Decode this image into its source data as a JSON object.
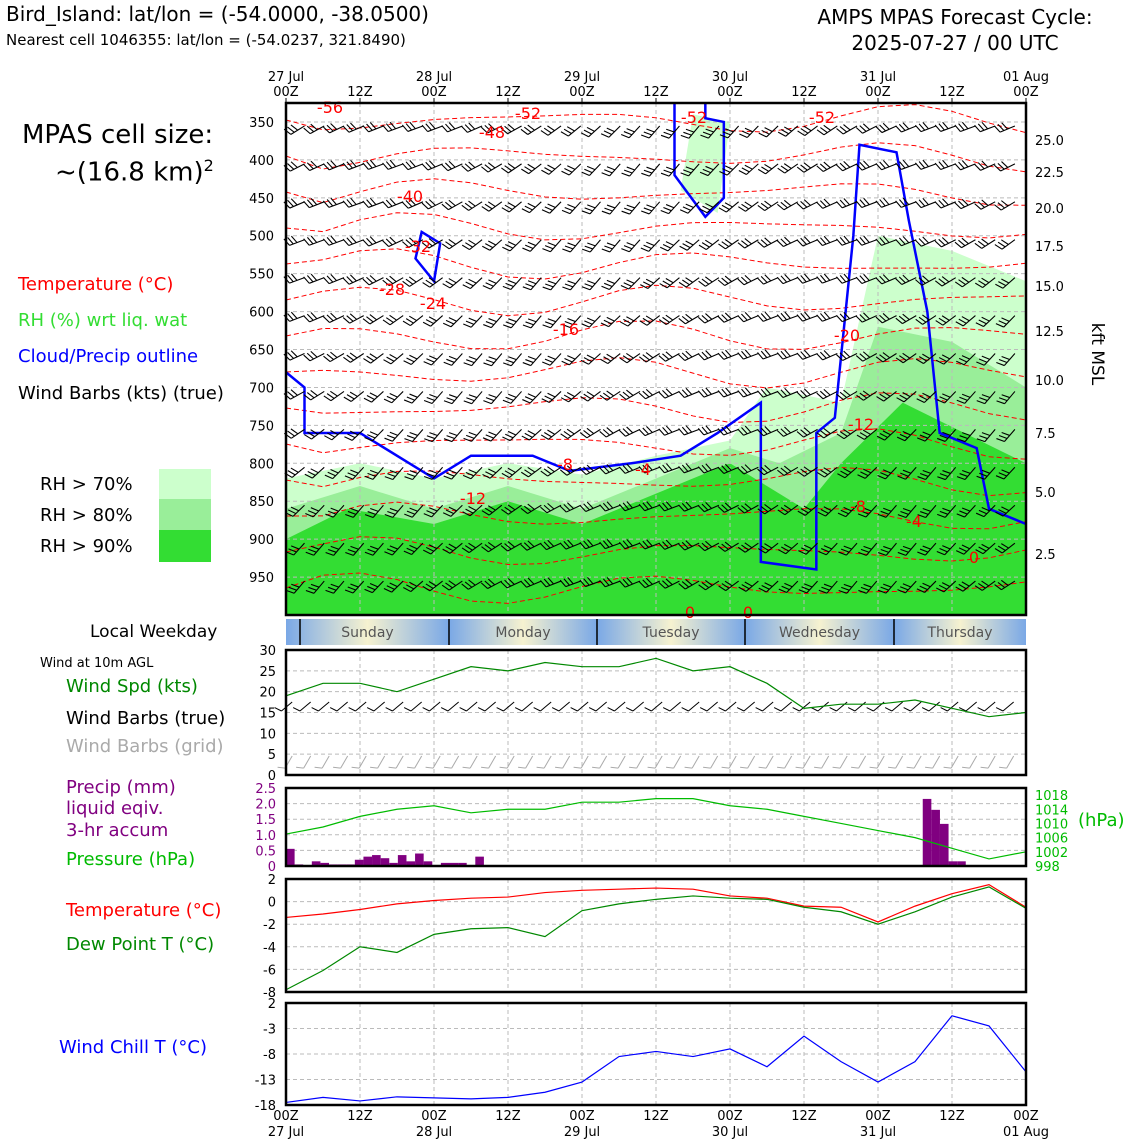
{
  "header": {
    "location": "Bird_Island: lat/lon = (-54.0000, -38.0500)",
    "cell": "Nearest cell 1046355: lat/lon = (-54.0237, 321.8490)",
    "title_line1": "AMPS MPAS Forecast Cycle:",
    "title_line2": "2025-07-27 / 00 UTC"
  },
  "left_panel": {
    "cell_size_line1": "MPAS cell size:",
    "cell_size_line2": "~(16.8 km)",
    "cell_size_sup": "2",
    "legend_temperature": "Temperature (°C)",
    "legend_rh": "RH (%) wrt liq. wat",
    "legend_cloud": "Cloud/Precip outline",
    "legend_barbs": "Wind Barbs (kts) (true)",
    "rh_70": "RH > 70%",
    "rh_80": "RH > 80%",
    "rh_90": "RH > 90%",
    "weekday_label": "Local Weekday",
    "wind10m_title": "Wind at 10m AGL",
    "wind_spd_label": "Wind Spd (kts)",
    "wind_barbs_true": "Wind Barbs (true)",
    "wind_barbs_grid": "Wind Barbs (grid)",
    "precip_label1": "Precip (mm)",
    "precip_label2": "liquid eqiv.",
    "precip_label3": "3-hr accum",
    "pressure_label": "Pressure (hPa)",
    "temp_label": "Temperature (°C)",
    "dew_label": "Dew Point T (°C)",
    "windchill_label": "Wind Chill T (°C)"
  },
  "colors": {
    "temperature": "#ff0000",
    "rh": "#33dd33",
    "cloud": "#0000ff",
    "windspd": "#008800",
    "precip": "#800080",
    "pressure": "#00bb00",
    "dewpoint": "#008800",
    "windchill": "#0000ff",
    "rh70": "#ccffcc",
    "rh80": "#99ee99",
    "rh90": "#33dd33",
    "grid_barb": "#aaaaaa"
  },
  "chart_data": [
    {
      "type": "heatmap",
      "name": "time-height cross section",
      "x_ticks_top": [
        {
          "major": "27 Jul",
          "minor": "00Z"
        },
        {
          "major": "",
          "minor": "12Z"
        },
        {
          "major": "28 Jul",
          "minor": "00Z"
        },
        {
          "major": "",
          "minor": "12Z"
        },
        {
          "major": "29 Jul",
          "minor": "00Z"
        },
        {
          "major": "",
          "minor": "12Z"
        },
        {
          "major": "30 Jul",
          "minor": "00Z"
        },
        {
          "major": "",
          "minor": "12Z"
        },
        {
          "major": "31 Jul",
          "minor": "00Z"
        },
        {
          "major": "",
          "minor": "12Z"
        },
        {
          "major": "01 Aug",
          "minor": "00Z"
        }
      ],
      "y_ticks_pressure": [
        "350",
        "400",
        "450",
        "500",
        "550",
        "600",
        "650",
        "700",
        "750",
        "800",
        "850",
        "900",
        "950"
      ],
      "y_ticks_kft": [
        "25.0",
        "22.5",
        "20.0",
        "17.5",
        "15.0",
        "12.5",
        "10.0",
        "7.5",
        "5.0",
        "2.5"
      ],
      "ylabel_right": "kft MSL",
      "temperature_labels": [
        "-56",
        "-52",
        "-52",
        "-52",
        "-48",
        "-40",
        "-32",
        "-28",
        "-24",
        "-16",
        "-20",
        "-12",
        "-12",
        "-8",
        "-4",
        "-8",
        "-4",
        "0",
        "0",
        "0"
      ]
    },
    {
      "type": "table",
      "name": "local weekday",
      "days": [
        "Sunday",
        "Monday",
        "Tuesday",
        "Wednesday",
        "Thursday"
      ]
    },
    {
      "type": "line",
      "name": "wind speed 10m",
      "ylim": [
        0,
        30
      ],
      "yticks": [
        "30",
        "25",
        "20",
        "15",
        "10",
        "5",
        "0"
      ],
      "x_hours": [
        0,
        6,
        12,
        18,
        24,
        30,
        36,
        42,
        48,
        54,
        60,
        66,
        72,
        78,
        84,
        90,
        96,
        102,
        108,
        114,
        120
      ],
      "series": [
        {
          "name": "Wind Spd (kts)",
          "values": [
            19,
            22,
            22,
            20,
            23,
            26,
            25,
            27,
            26,
            26,
            28,
            25,
            26,
            22,
            16,
            17,
            17,
            18,
            16,
            14,
            15
          ]
        }
      ]
    },
    {
      "type": "bar",
      "name": "precip and pressure",
      "precip_ylim": [
        0,
        2.5
      ],
      "precip_yticks": [
        "2.5",
        "2.0",
        "1.5",
        "1.0",
        "0.5",
        "0"
      ],
      "pressure_yticks": [
        "1018",
        "1014",
        "1010",
        "1006",
        "1002",
        "998"
      ],
      "pressure_unit": "(hPa)",
      "precip_3h": [
        0.55,
        0.05,
        0,
        0.15,
        0.1,
        0.05,
        0.05,
        0.05,
        0.2,
        0.3,
        0.35,
        0.25,
        0.1,
        0.35,
        0.15,
        0.4,
        0.15,
        0,
        0.1,
        0.1,
        0.1,
        0,
        0.3,
        0,
        0,
        0,
        0,
        0,
        0,
        0,
        0,
        0,
        0,
        0,
        0,
        0,
        0,
        0,
        0,
        0,
        0,
        0,
        0,
        0,
        0,
        0,
        0,
        0,
        0,
        0,
        0,
        0,
        0,
        0,
        0,
        0,
        0,
        0,
        0,
        0,
        0,
        0,
        0,
        0,
        0,
        0,
        0,
        0,
        0,
        0,
        0,
        0,
        0,
        0,
        2.15,
        1.8,
        1.35,
        0.15,
        0.15,
        0,
        0,
        0,
        0,
        0,
        0,
        0
      ],
      "pressure_x": [
        0,
        6,
        12,
        18,
        24,
        30,
        36,
        42,
        48,
        54,
        60,
        66,
        72,
        78,
        84,
        90,
        96,
        102,
        108,
        114,
        120
      ],
      "pressure": [
        1007,
        1009,
        1012,
        1014,
        1015,
        1013,
        1014,
        1014,
        1016,
        1016,
        1017,
        1017,
        1015,
        1014,
        1012,
        1010,
        1008,
        1006,
        1003,
        1000,
        1002
      ]
    },
    {
      "type": "line",
      "name": "temperature and dew point",
      "ylim": [
        -8,
        2
      ],
      "yticks": [
        "2",
        "0",
        "-2",
        "-4",
        "-6",
        "-8"
      ],
      "x_hours": [
        0,
        6,
        12,
        18,
        24,
        30,
        36,
        42,
        48,
        54,
        60,
        66,
        72,
        78,
        84,
        90,
        96,
        102,
        108,
        114,
        120
      ],
      "series": [
        {
          "name": "Temperature (°C)",
          "values": [
            -1.4,
            -1.1,
            -0.7,
            -0.2,
            0.1,
            0.3,
            0.4,
            0.8,
            1.0,
            1.1,
            1.2,
            1.1,
            0.5,
            0.3,
            -0.4,
            -0.5,
            -1.8,
            -0.4,
            0.7,
            1.5,
            -0.5
          ]
        },
        {
          "name": "Dew Point T (°C)",
          "values": [
            -7.8,
            -6.1,
            -4.0,
            -4.5,
            -2.9,
            -2.4,
            -2.3,
            -3.1,
            -0.8,
            -0.2,
            0.2,
            0.5,
            0.3,
            0.2,
            -0.5,
            -0.9,
            -2.0,
            -0.9,
            0.4,
            1.3,
            -0.6
          ]
        }
      ]
    },
    {
      "type": "line",
      "name": "wind chill",
      "ylim": [
        -18,
        2
      ],
      "yticks": [
        "2",
        "-3",
        "-8",
        "-13",
        "-18"
      ],
      "x_hours": [
        0,
        6,
        12,
        18,
        24,
        30,
        36,
        42,
        48,
        54,
        60,
        66,
        72,
        78,
        84,
        90,
        96,
        102,
        108,
        114,
        120
      ],
      "series": [
        {
          "name": "Wind Chill T (°C)",
          "values": [
            -17.5,
            -16.5,
            -17.2,
            -16.4,
            -16.6,
            -16.8,
            -16.5,
            -15.5,
            -13.5,
            -8.5,
            -7.5,
            -8.5,
            -7.0,
            -10.5,
            -4.5,
            -9.5,
            -13.5,
            -9.5,
            -0.5,
            -2.5,
            -11.5
          ]
        }
      ]
    }
  ],
  "bottom_axis": {
    "minor": [
      "00Z",
      "12Z",
      "00Z",
      "12Z",
      "00Z",
      "12Z",
      "00Z",
      "12Z",
      "00Z",
      "12Z",
      "00Z"
    ],
    "major": [
      "27 Jul",
      "",
      "28 Jul",
      "",
      "29 Jul",
      "",
      "30 Jul",
      "",
      "31 Jul",
      "",
      "01 Aug"
    ]
  }
}
